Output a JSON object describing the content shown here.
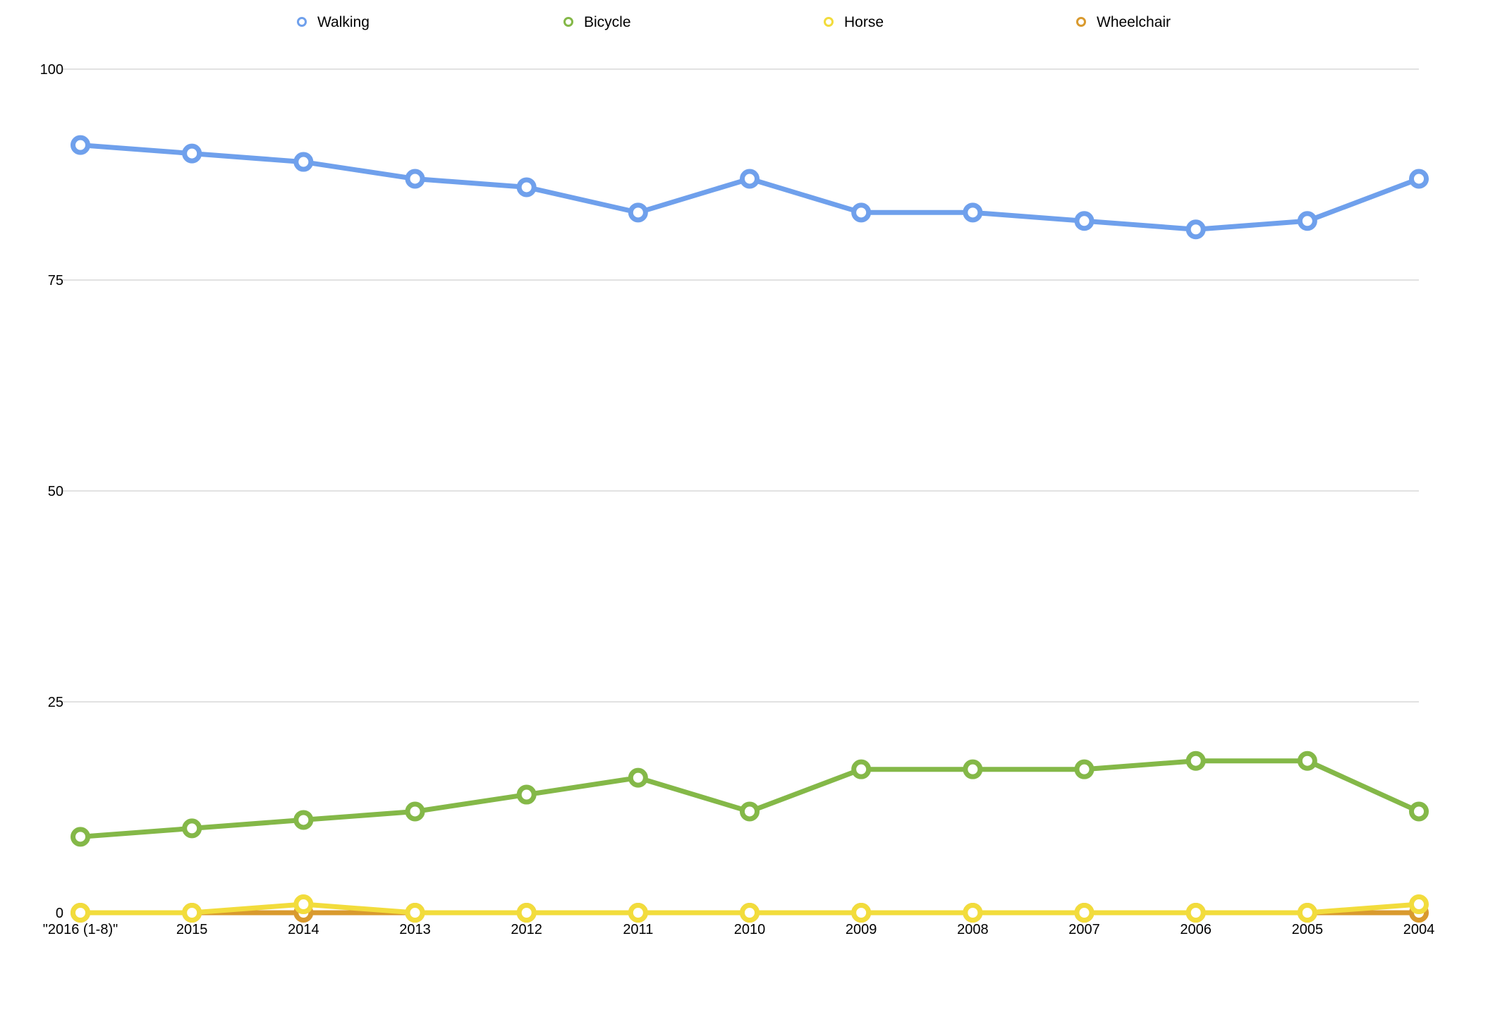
{
  "chart_data": {
    "type": "line",
    "categories": [
      "\"2016 (1-8)\"",
      "2015",
      "2014",
      "2013",
      "2012",
      "2011",
      "2010",
      "2009",
      "2008",
      "2007",
      "2006",
      "2005",
      "2004"
    ],
    "series": [
      {
        "name": "Walking",
        "color": "#6fa0ec",
        "values": [
          91,
          90,
          89,
          87,
          86,
          83,
          87,
          83,
          83,
          82,
          81,
          82,
          87
        ]
      },
      {
        "name": "Bicycle",
        "color": "#84b848",
        "values": [
          9,
          10,
          11,
          12,
          14,
          16,
          12,
          17,
          17,
          17,
          18,
          18,
          12
        ]
      },
      {
        "name": "Wheelchair",
        "color": "#d99a2e",
        "values": [
          0,
          0,
          0,
          0,
          0,
          0,
          0,
          0,
          0,
          0,
          0,
          0,
          0
        ]
      },
      {
        "name": "Horse",
        "color": "#f2dc3c",
        "values": [
          0,
          0,
          1,
          0,
          0,
          0,
          0,
          0,
          0,
          0,
          0,
          0,
          1
        ]
      }
    ],
    "legend_order": [
      "Walking",
      "Bicycle",
      "Horse",
      "Wheelchair"
    ],
    "yticks": [
      0,
      25,
      50,
      75,
      100
    ],
    "ylim": [
      0,
      100
    ],
    "grid": true,
    "legend_position": "top",
    "title": "",
    "xlabel": "",
    "ylabel": ""
  }
}
